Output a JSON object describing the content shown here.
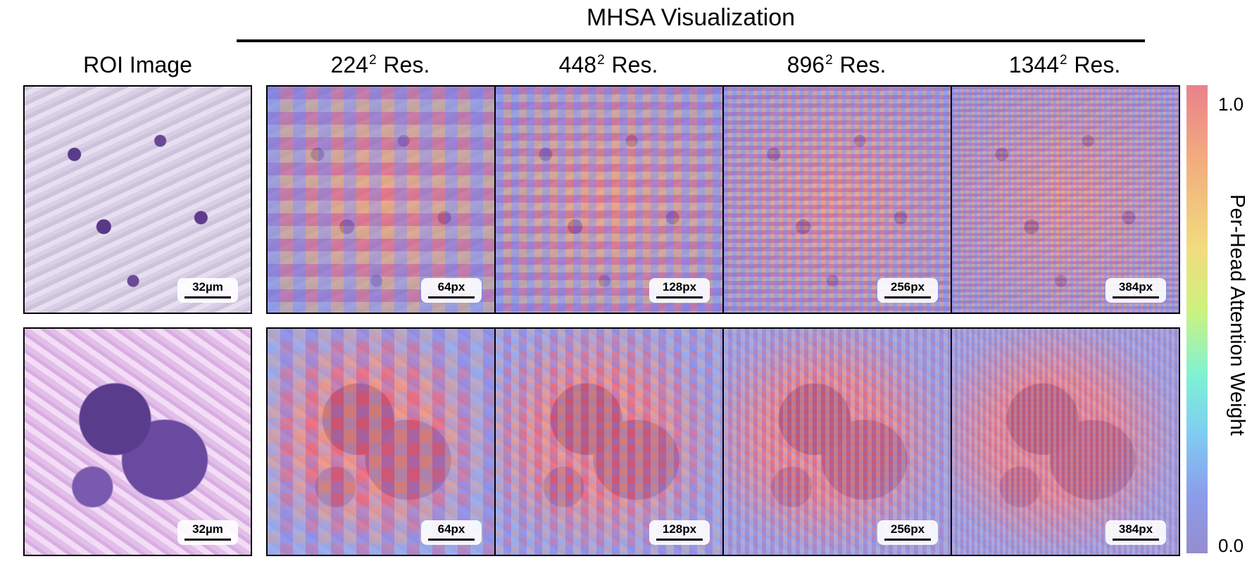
{
  "figure": {
    "title": "MHSA Visualization",
    "roi_header": "ROI Image",
    "columns": [
      {
        "base": "224",
        "exp": "2",
        "suffix": "Res."
      },
      {
        "base": "448",
        "exp": "2",
        "suffix": "Res."
      },
      {
        "base": "896",
        "exp": "2",
        "suffix": "Res."
      },
      {
        "base": "1344",
        "exp": "2",
        "suffix": "Res."
      }
    ],
    "rows": [
      {
        "roi_scale": "32µm",
        "panel_scales": [
          "64px",
          "128px",
          "256px",
          "384px"
        ]
      },
      {
        "roi_scale": "32µm",
        "panel_scales": [
          "64px",
          "128px",
          "256px",
          "384px"
        ]
      }
    ],
    "colorbar": {
      "label": "Per-Head Attention Weight",
      "max": "1.0",
      "min": "0.0"
    }
  }
}
